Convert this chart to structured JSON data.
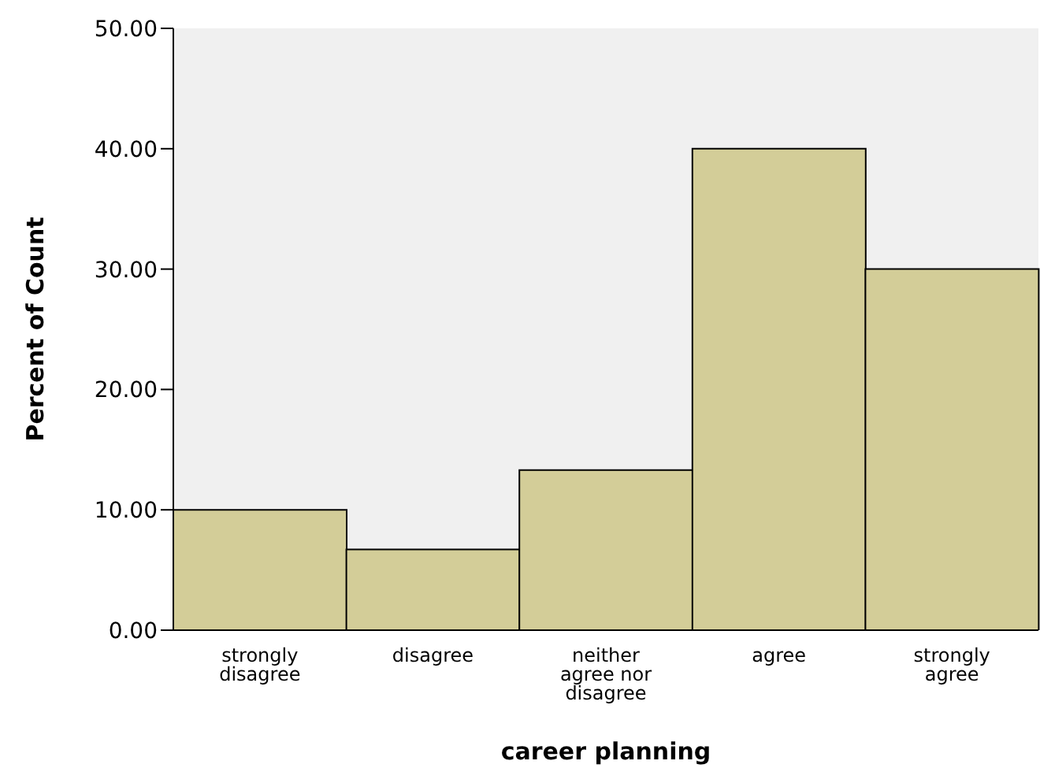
{
  "chart_data": {
    "type": "bar",
    "xlabel": "career planning",
    "ylabel": "Percent of Count",
    "categories": [
      "strongly disagree",
      "disagree",
      "neither agree nor disagree",
      "agree",
      "strongly agree"
    ],
    "values": [
      10,
      6.7,
      13.3,
      40,
      30
    ],
    "color": "#d3cd98",
    "ylim": [
      0,
      50
    ],
    "yticks": [
      {
        "value": 0,
        "label": "0.00"
      },
      {
        "value": 10,
        "label": "10.00"
      },
      {
        "value": 20,
        "label": "20.00"
      },
      {
        "value": 30,
        "label": "30.00"
      },
      {
        "value": 40,
        "label": "40.00"
      },
      {
        "value": 50,
        "label": "50.00"
      }
    ],
    "grid": false
  }
}
